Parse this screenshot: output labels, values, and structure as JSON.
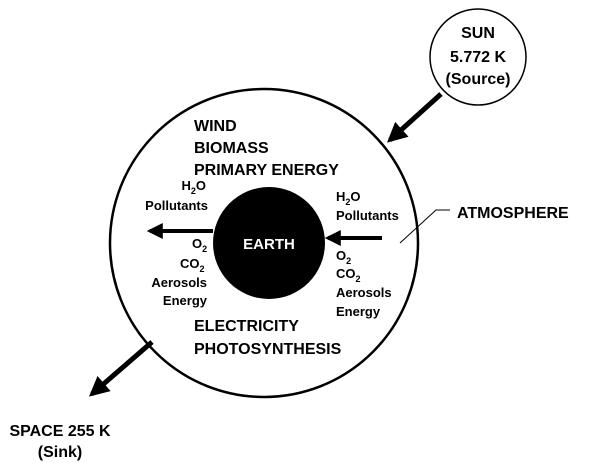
{
  "sun": {
    "line1": "SUN",
    "line2": "5.772 K",
    "line3": "(Source)"
  },
  "atmosphere": {
    "label": "ATMOSPHERE",
    "top_lines": [
      "WIND",
      "BIOMASS",
      "PRIMARY ENERGY"
    ],
    "bottom_lines": [
      "ELECTRICITY",
      "PHOTOSYNTHESIS"
    ]
  },
  "earth": {
    "label": "EARTH"
  },
  "left_group": {
    "upper": {
      "h2o_base": "H",
      "h2o_sub": "2",
      "h2o_tail": "O",
      "pollutants": "Pollutants"
    },
    "lower": {
      "o2_base": "O",
      "o2_sub": "2",
      "co2_base": "CO",
      "co2_sub": "2",
      "aerosols": "Aerosols",
      "energy": "Energy"
    }
  },
  "right_group": {
    "upper": {
      "h2o_base": "H",
      "h2o_sub": "2",
      "h2o_tail": "O",
      "pollutants": "Pollutants"
    },
    "lower": {
      "o2_base": "O",
      "o2_sub": "2",
      "co2_base": "CO",
      "co2_sub": "2",
      "aerosols": "Aerosols",
      "energy": "Energy"
    }
  },
  "space": {
    "line1": "SPACE 255 K",
    "line2": "(Sink)"
  },
  "colors": {
    "line": "#000000",
    "earth_fill": "#000000",
    "earth_text": "#ffffff",
    "background": "#ffffff"
  }
}
